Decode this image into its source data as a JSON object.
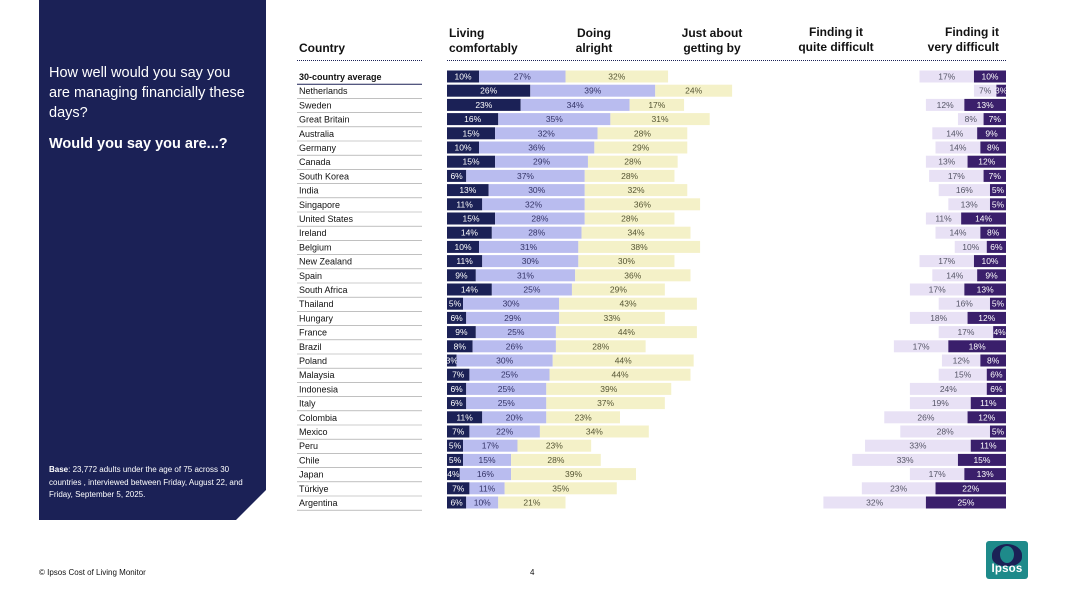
{
  "panel": {
    "question": "How well would you say you are managing financially these days?",
    "subquestion": "Would you say you are...?",
    "base_label": "Base",
    "base_text": ": 23,772 adults  under the age of 75 across 30 countries , interviewed between Friday, August 22, and Friday, September 5, 2025."
  },
  "headers": {
    "country": "Country",
    "living": [
      "Living",
      "comfortably"
    ],
    "doing": [
      "Doing",
      "alright"
    ],
    "just": [
      "Just about",
      "getting by"
    ],
    "quite": [
      "Finding it",
      "quite difficult"
    ],
    "very": [
      "Finding it",
      "very difficult"
    ]
  },
  "colors": {
    "panel_bg": "#1b2156",
    "living": "#1b2156",
    "doing": "#b9bcef",
    "just": "#f4f1c8",
    "quite": "#e8e1f5",
    "very": "#3a1f6b"
  },
  "footer": {
    "source": "© Ipsos Cost of Living Monitor",
    "page": "4",
    "logo_text": "Ipsos"
  },
  "chart_data": {
    "type": "bar",
    "orientation": "horizontal",
    "stacked": true,
    "categories": [
      "30-country average",
      "Netherlands",
      "Sweden",
      "Great Britain",
      "Australia",
      "Germany",
      "Canada",
      "South Korea",
      "India",
      "Singapore",
      "United States",
      "Ireland",
      "Belgium",
      "New Zealand",
      "Spain",
      "South Africa",
      "Thailand",
      "Hungary",
      "France",
      "Brazil",
      "Poland",
      "Malaysia",
      "Indonesia",
      "Italy",
      "Colombia",
      "Mexico",
      "Peru",
      "Chile",
      "Japan",
      "Türkiye",
      "Argentina"
    ],
    "series": [
      {
        "name": "Living comfortably",
        "values": [
          10,
          26,
          23,
          16,
          15,
          10,
          15,
          6,
          13,
          11,
          15,
          14,
          10,
          11,
          9,
          14,
          5,
          6,
          9,
          8,
          3,
          7,
          6,
          6,
          11,
          7,
          5,
          5,
          4,
          7,
          6
        ]
      },
      {
        "name": "Doing alright",
        "values": [
          27,
          39,
          34,
          35,
          32,
          36,
          29,
          37,
          30,
          32,
          28,
          28,
          31,
          30,
          31,
          25,
          30,
          29,
          25,
          26,
          30,
          25,
          25,
          25,
          20,
          22,
          17,
          15,
          16,
          11,
          10
        ]
      },
      {
        "name": "Just about getting by",
        "values": [
          32,
          24,
          17,
          31,
          28,
          29,
          28,
          28,
          32,
          36,
          28,
          34,
          38,
          30,
          36,
          29,
          43,
          33,
          44,
          28,
          44,
          44,
          39,
          37,
          23,
          34,
          23,
          28,
          39,
          35,
          21
        ]
      },
      {
        "name": "Finding it quite difficult",
        "values": [
          17,
          7,
          12,
          8,
          14,
          14,
          13,
          17,
          16,
          13,
          11,
          14,
          10,
          17,
          14,
          17,
          16,
          18,
          17,
          17,
          12,
          15,
          24,
          19,
          26,
          28,
          33,
          33,
          17,
          23,
          32
        ]
      },
      {
        "name": "Finding it very difficult",
        "values": [
          10,
          3,
          13,
          7,
          9,
          8,
          12,
          7,
          5,
          5,
          14,
          8,
          6,
          10,
          9,
          13,
          5,
          12,
          4,
          18,
          8,
          6,
          6,
          11,
          12,
          5,
          11,
          15,
          13,
          22,
          25
        ]
      }
    ],
    "value_suffix": "%"
  }
}
